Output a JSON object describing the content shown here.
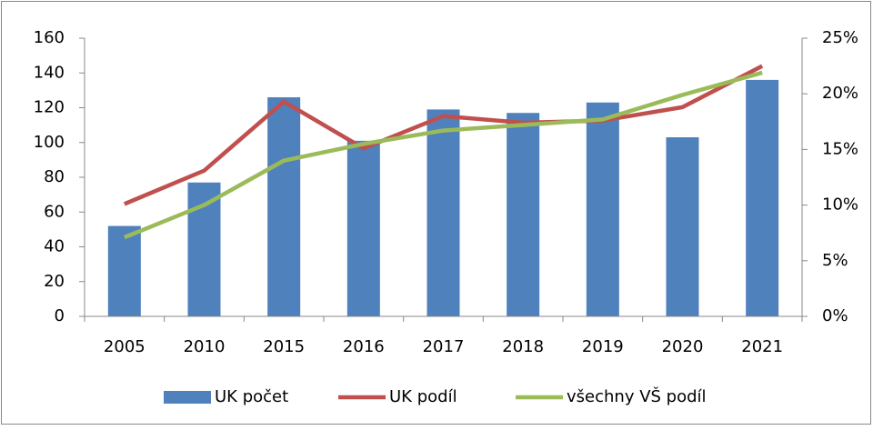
{
  "chart_data": {
    "type": "bar",
    "categories": [
      "2005",
      "2010",
      "2015",
      "2016",
      "2017",
      "2018",
      "2019",
      "2020",
      "2021"
    ],
    "series": [
      {
        "name": "UK počet",
        "type": "bar",
        "axis": "y",
        "color": "#4f81bd",
        "values": [
          52,
          77,
          126,
          101,
          119,
          117,
          123,
          103,
          136
        ]
      },
      {
        "name": "UK podíl",
        "type": "line",
        "axis": "y2",
        "color": "#c0504d",
        "values": [
          10.1,
          13.1,
          19.3,
          15.1,
          18.0,
          17.4,
          17.6,
          18.8,
          22.5
        ]
      },
      {
        "name": "všechny VŠ podíl",
        "type": "line",
        "axis": "y2",
        "color": "#9bbb59",
        "values": [
          7.1,
          10.0,
          14.0,
          15.5,
          16.7,
          17.2,
          17.7,
          19.9,
          21.9
        ]
      }
    ],
    "ylim": [
      0,
      160
    ],
    "yticks": [
      0,
      20,
      40,
      60,
      80,
      100,
      120,
      140,
      160
    ],
    "y2lim": [
      0,
      25
    ],
    "y2ticks": [
      {
        "value": 0,
        "label": "0%"
      },
      {
        "value": 5,
        "label": "5%"
      },
      {
        "value": 10,
        "label": "10%"
      },
      {
        "value": 15,
        "label": "15%"
      },
      {
        "value": 20,
        "label": "20%"
      },
      {
        "value": 25,
        "label": "25%"
      }
    ],
    "legend": "bottom"
  }
}
